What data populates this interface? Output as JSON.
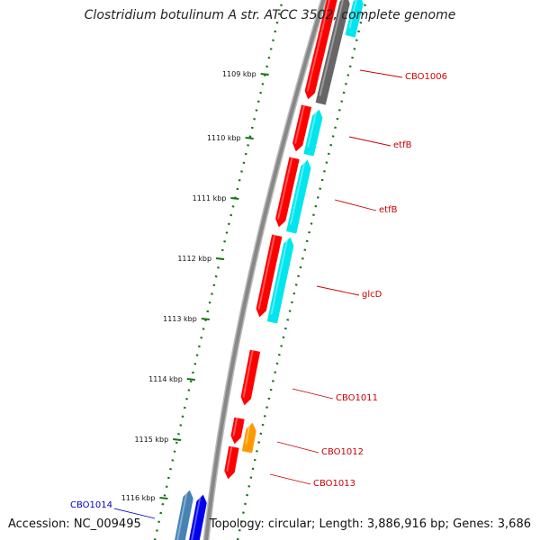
{
  "title": "Clostridium botulinum A str. ATCC 3502, complete genome",
  "footer": {
    "accession": "Accession: NC_009495",
    "summary": "Topology: circular; Length: 3,886,916 bp; Genes: 3,686"
  },
  "colors": {
    "backbone": "#888888",
    "tick": "#117711",
    "forward_gene": "#ff0000",
    "reverse_cyan": "#00e5ee",
    "reverse_gray": "#666666",
    "orange_gene": "#ff9900",
    "blue_gene": "#0000ee",
    "steel_gene": "#4682b4",
    "label_red": "#cc0000",
    "label_blue": "#0000cc"
  },
  "ticks": [
    {
      "label": "1109 kbp"
    },
    {
      "label": "1110 kbp"
    },
    {
      "label": "1111 kbp"
    },
    {
      "label": "1112 kbp"
    },
    {
      "label": "1113 kbp"
    },
    {
      "label": "1114 kbp"
    },
    {
      "label": "1115 kbp"
    },
    {
      "label": "1116 kbp"
    }
  ],
  "gene_labels": [
    {
      "text": "CBO1006",
      "color": "#cc0000"
    },
    {
      "text": "etfB",
      "color": "#cc0000"
    },
    {
      "text": "etfB",
      "color": "#cc0000"
    },
    {
      "text": "glcD",
      "color": "#cc0000"
    },
    {
      "text": "CBO1011",
      "color": "#cc0000"
    },
    {
      "text": "CBO1012",
      "color": "#cc0000"
    },
    {
      "text": "CBO1013",
      "color": "#cc0000"
    },
    {
      "text": "CBO1014",
      "color": "#0000cc"
    }
  ]
}
